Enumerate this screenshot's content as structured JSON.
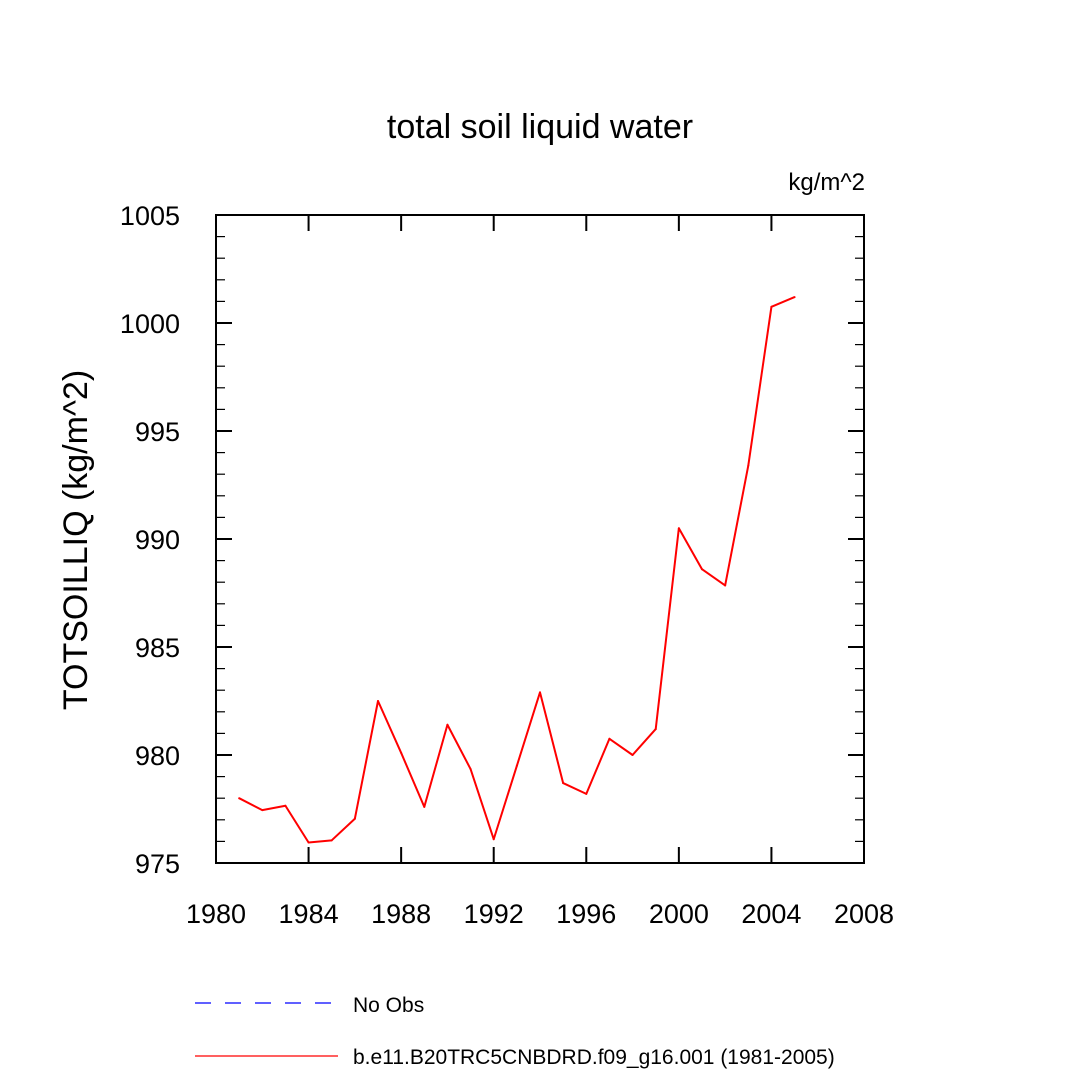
{
  "chart_data": {
    "type": "line",
    "title": "total soil liquid water",
    "units_label": "kg/m^2",
    "ylabel": "TOTSOILLIQ  (kg/m^2)",
    "xlabel": "",
    "xlim": [
      1980,
      2008
    ],
    "ylim": [
      975,
      1005
    ],
    "x_ticks": [
      1980,
      1984,
      1988,
      1992,
      1996,
      2000,
      2004,
      2008
    ],
    "x_tick_labels": [
      "1980",
      "1984",
      "1988",
      "1992",
      "1996",
      "2000",
      "2004",
      "2008"
    ],
    "y_ticks": [
      975,
      980,
      985,
      990,
      995,
      1000,
      1005
    ],
    "y_tick_labels": [
      "975",
      "980",
      "985",
      "990",
      "995",
      "1000",
      "1005"
    ],
    "grid": false,
    "series": [
      {
        "name": "b.e11.B20TRC5CNBDRD.f09_g16.001 (1981-2005)",
        "color": "#ff0000",
        "style": "solid",
        "x": [
          1981,
          1982,
          1983,
          1984,
          1985,
          1986,
          1987,
          1988,
          1989,
          1990,
          1991,
          1992,
          1993,
          1994,
          1995,
          1996,
          1997,
          1998,
          1999,
          2000,
          2001,
          2002,
          2003,
          2004,
          2005
        ],
        "values": [
          978.0,
          977.45,
          977.65,
          975.95,
          976.05,
          977.05,
          982.5,
          980.1,
          977.6,
          981.4,
          979.35,
          976.1,
          979.5,
          982.9,
          978.7,
          978.2,
          980.75,
          980.0,
          981.2,
          990.5,
          988.6,
          987.85,
          993.4,
          1000.75,
          1001.2
        ]
      }
    ],
    "legend": {
      "placement": "bottom-left",
      "entries": [
        {
          "label": "No Obs",
          "color": "#0000ff",
          "style": "dashed"
        },
        {
          "label": "b.e11.B20TRC5CNBDRD.f09_g16.001 (1981-2005)",
          "color": "#ff0000",
          "style": "solid"
        }
      ]
    }
  }
}
